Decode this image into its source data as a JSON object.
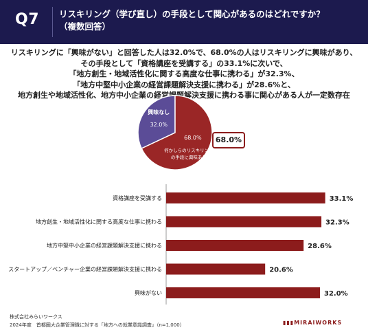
{
  "header": {
    "question": "Q7",
    "title": "リスキリング（学び直し）の手段として関心があるのはどれですか？\n（複数回答）"
  },
  "summary": {
    "lines": [
      "リスキリングに「興味がない」と回答した人は32.0%で、68.0%の人はリスキリングに興味があり、",
      "その手段として「資格講座を受講する」の33.1%に次いで、",
      "「地方創生・地域活性化に関する高度な仕事に携わる」が32.3%、",
      "「地方中堅中小企業の経営課題解決支援に携わる」が28.6%と、",
      "地方創生や地域活性化、地方中小企業の経営課題解決支援に携わる事に関心がある人が一定数存在"
    ]
  },
  "colors": {
    "header_bg": "#1c1a4e",
    "accent_red": "#8c1c1c",
    "pie_interested": "#9a2626",
    "pie_not_interested": "#5b4c97"
  },
  "chart_data": [
    {
      "type": "pie",
      "slices": [
        {
          "label": "興味なし",
          "value": 32.0,
          "value_label": "32.0%",
          "color": "#5b4c97"
        },
        {
          "label": "何かしらのリスキリング\nの手段に興味あり",
          "value": 68.0,
          "value_label": "68.0%",
          "color": "#9a2626"
        }
      ],
      "callout": "68.0%"
    },
    {
      "type": "bar",
      "orientation": "horizontal",
      "categories": [
        "資格講座を受講する",
        "地方創生・地域活性化に関する高度な仕事に携わる",
        "地方中堅中小企業の経営課題解決支援に携わる",
        "スタートアップ／ベンチャー企業の経営課題解決支援に携わる",
        "興味がない"
      ],
      "values": [
        33.1,
        32.3,
        28.6,
        20.6,
        32.0
      ],
      "value_labels": [
        "33.1%",
        "32.3%",
        "28.6%",
        "20.6%",
        "32.0%"
      ],
      "color": "#8c1c1c",
      "xlim": [
        0,
        35
      ]
    }
  ],
  "footer": {
    "company": "株式会社みらいワークス",
    "source": "2024年度　首都圏大企業管理職に対する「地方への就業意識調査」（n=1,000）",
    "logo": "MIRAIWORKS"
  }
}
